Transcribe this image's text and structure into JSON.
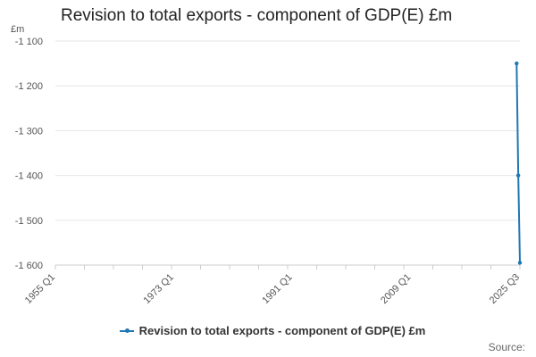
{
  "chart_data": {
    "type": "line",
    "title": "Revision to total exports - component of GDP(E) £m",
    "ylabel": "£m",
    "xlabel": "",
    "x_ticks": [
      "1955 Q1",
      "1973 Q1",
      "1991 Q1",
      "2009 Q1",
      "2025 Q3"
    ],
    "y_ticks": [
      "-1 100",
      "-1 200",
      "-1 300",
      "-1 400",
      "-1 500",
      "-1 600"
    ],
    "y_tick_values": [
      -1100,
      -1200,
      -1300,
      -1400,
      -1500,
      -1600
    ],
    "ylim": [
      -1600,
      -1100
    ],
    "xlim": [
      "1955 Q1",
      "2025 Q3"
    ],
    "series": [
      {
        "name": "Revision to total exports - component of GDP(E) £m",
        "color": "#1f78b4",
        "x": [
          "2025 Q1",
          "2025 Q2",
          "2025 Q3"
        ],
        "values": [
          -1150,
          -1400,
          -1595
        ]
      }
    ],
    "grid": "horizontal",
    "legend_position": "bottom"
  },
  "credits": "Source:"
}
